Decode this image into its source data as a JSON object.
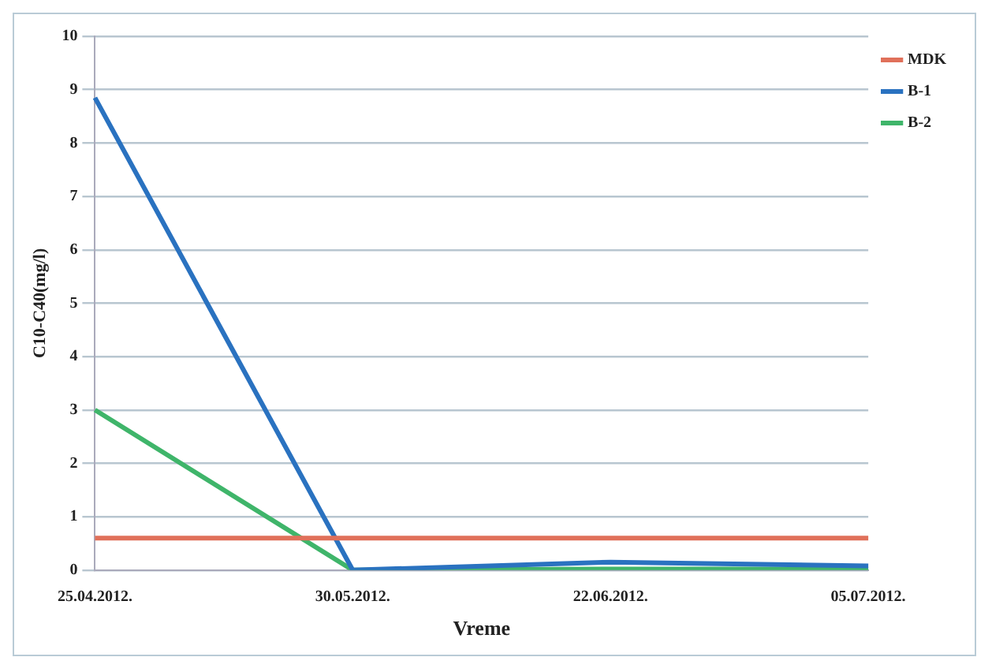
{
  "chart_data": {
    "type": "line",
    "xlabel": "Vreme",
    "ylabel": "C10-C40(mg/l)",
    "categories": [
      "25.04.2012.",
      "30.05.2012.",
      "22.06.2012.",
      "05.07.2012."
    ],
    "series": [
      {
        "name": "MDK",
        "color": "#e0705a",
        "values": [
          0.6,
          0.6,
          0.6,
          0.6
        ]
      },
      {
        "name": "B-1",
        "color": "#2a72c0",
        "values": [
          8.85,
          0,
          0.15,
          0.08
        ]
      },
      {
        "name": "B-2",
        "color": "#3fb56a",
        "values": [
          3,
          0,
          0.02,
          0.02
        ]
      }
    ],
    "ylim": [
      0,
      10
    ],
    "yticks": [
      0,
      1,
      2,
      3,
      4,
      5,
      6,
      7,
      8,
      9,
      10
    ],
    "grid": "y",
    "legend": "right",
    "marker": "none",
    "line_style": "solid"
  }
}
